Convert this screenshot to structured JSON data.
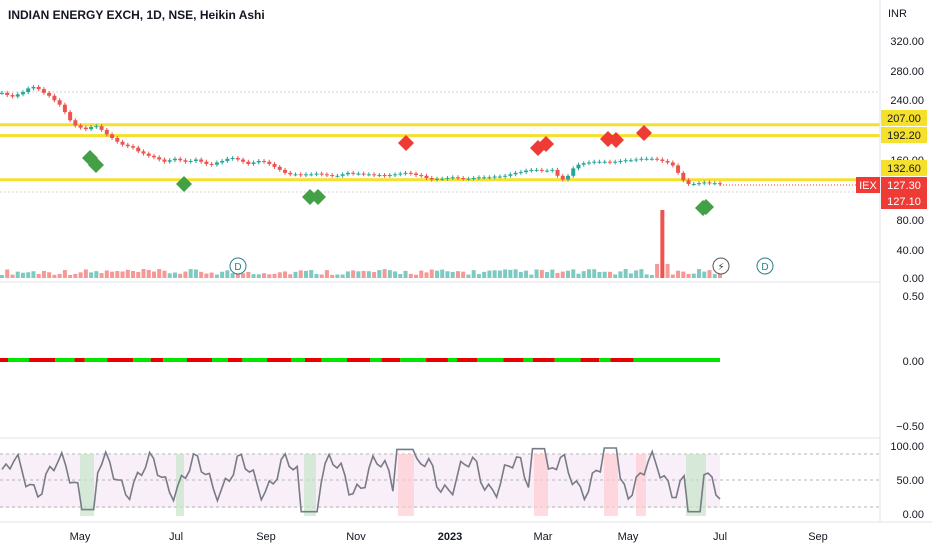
{
  "header": {
    "title": "INDIAN ENERGY EXCH, 1D, NSE, Heikin Ashi",
    "currency": "INR"
  },
  "price_axis": {
    "ticks": [
      "320.00",
      "280.00",
      "240.00",
      "160.00",
      "80.00",
      "40.00",
      "0.00"
    ],
    "lines": [
      {
        "label": "207.00",
        "value": 207.0,
        "color": "#f5e02b"
      },
      {
        "label": "192.20",
        "value": 192.2,
        "color": "#f5e02b"
      },
      {
        "label": "132.60",
        "value": 132.6,
        "color": "#f5e02b"
      }
    ],
    "last_price": {
      "symbol": "IEX",
      "label": "127.30",
      "value": 127.3,
      "color": "#ef3b36"
    },
    "prev_tag": {
      "label": "127.10",
      "value": 127.1,
      "color": "#ef3b36"
    }
  },
  "oscillator_axis": {
    "ticks": [
      "0.50",
      "0.00",
      "−0.50"
    ]
  },
  "rsi_axis": {
    "ticks": [
      "100.00",
      "50.00",
      "0.00"
    ]
  },
  "time_axis": {
    "labels": [
      "May",
      "Jul",
      "Sep",
      "Nov",
      "2023",
      "Mar",
      "May",
      "Jul",
      "Sep"
    ]
  },
  "event_markers": {
    "dividend_symbol": "D",
    "split_symbol": "⚡"
  },
  "chart_data": {
    "type": "line",
    "series": [
      {
        "values": [
          250,
          247,
          245,
          248,
          251,
          256,
          258,
          255,
          250,
          246,
          240,
          234,
          224,
          213,
          206,
          203,
          201,
          204,
          205,
          200,
          194,
          189,
          184,
          180,
          178,
          176,
          171,
          168,
          165,
          163,
          160,
          157,
          159,
          161,
          159,
          157,
          158,
          160,
          157,
          154,
          153,
          156,
          158,
          161,
          162,
          160,
          157,
          154,
          156,
          158,
          157,
          154,
          150,
          146,
          142,
          140,
          140,
          139,
          140,
          140,
          141,
          140,
          139,
          138,
          138,
          140,
          142,
          141,
          141,
          140,
          140,
          139,
          139,
          138,
          139,
          140,
          141,
          142,
          141,
          139,
          138,
          135,
          133,
          134,
          134,
          135,
          136,
          135,
          134,
          134,
          135,
          136,
          136,
          136,
          137,
          137,
          138,
          140,
          142,
          143,
          145,
          146,
          146,
          145,
          145,
          146,
          138,
          133,
          138,
          148,
          153,
          155,
          156,
          157,
          157,
          157,
          156,
          157,
          158,
          159,
          159,
          160,
          161,
          161,
          161,
          160,
          158,
          156,
          152,
          142,
          132,
          127,
          127,
          128,
          129,
          128,
          128,
          127
        ]
      }
    ],
    "colors": {
      "up": "#26a69a",
      "down": "#ef5350",
      "buy_marker": "#43a047",
      "sell_marker": "#ef3b36",
      "level": "#f5e02b",
      "rsi_line": "#787b86",
      "osc_up": "#00e600",
      "osc_down": "#e60000"
    }
  }
}
